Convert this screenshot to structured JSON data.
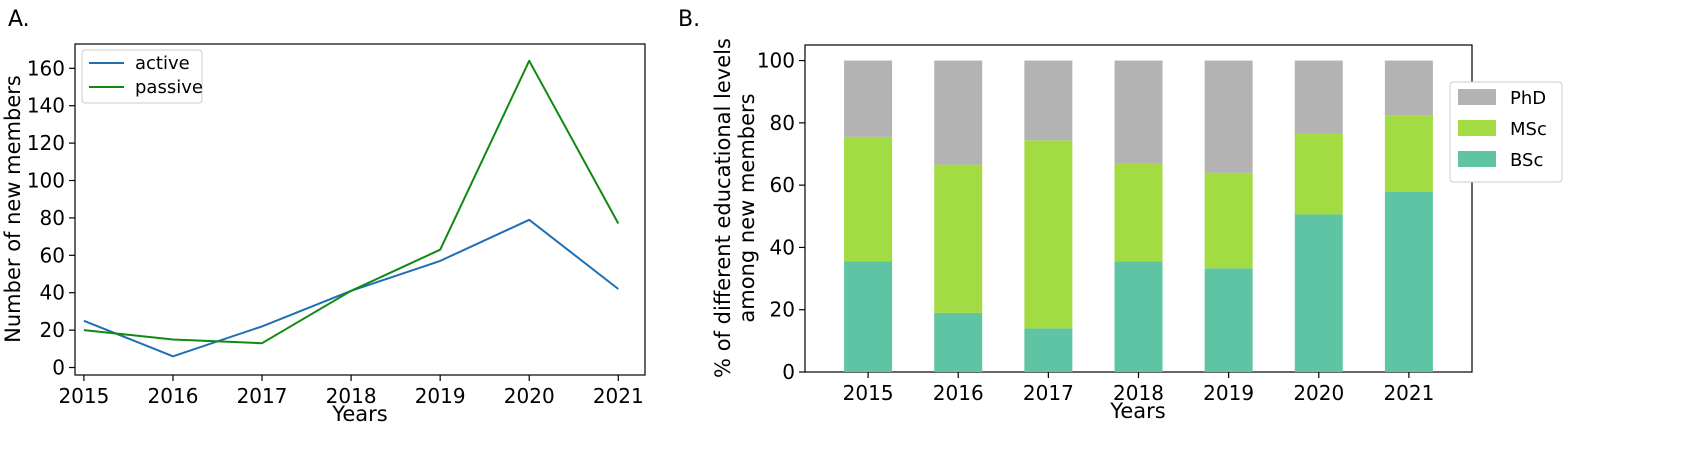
{
  "chart_data": [
    {
      "panel_label": "A.",
      "type": "line",
      "x": [
        2015,
        2016,
        2017,
        2018,
        2019,
        2020,
        2021
      ],
      "xlabel": "Years",
      "ylabel": "Number of new members",
      "ylim": [
        0,
        170
      ],
      "xticks": [
        "2015",
        "2016",
        "2017",
        "2018",
        "2019",
        "2020",
        "2021"
      ],
      "yticks": [
        "0",
        "20",
        "40",
        "60",
        "80",
        "100",
        "120",
        "140",
        "160"
      ],
      "grid": false,
      "legend_position": "top-left",
      "series": [
        {
          "name": "active",
          "color": "#1f6fb4",
          "values": [
            25,
            6,
            22,
            41,
            57,
            79,
            42
          ]
        },
        {
          "name": "passive",
          "color": "#118811",
          "values": [
            20,
            15,
            13,
            41,
            63,
            164,
            77
          ]
        }
      ]
    },
    {
      "panel_label": "B.",
      "type": "bar",
      "stacked": true,
      "categories": [
        "2015",
        "2016",
        "2017",
        "2018",
        "2019",
        "2020",
        "2021"
      ],
      "xlabel": "Years",
      "ylabel_lines": [
        "% of different educational levels",
        "among new members"
      ],
      "ylim": [
        0,
        105
      ],
      "yticks": [
        "0",
        "20",
        "40",
        "60",
        "80",
        "100"
      ],
      "grid": false,
      "legend_position": "right",
      "series": [
        {
          "name": "BSc",
          "color": "#5ec4a3",
          "values": [
            35.5,
            19,
            14,
            35.5,
            33.3,
            50.6,
            57.8
          ]
        },
        {
          "name": "MSc",
          "color": "#a3db42",
          "values": [
            40,
            47.6,
            60.4,
            31.6,
            30.7,
            26,
            24.6
          ]
        },
        {
          "name": "PhD",
          "color": "#b3b3b3",
          "values": [
            24.5,
            33.4,
            25.6,
            32.9,
            36,
            23.4,
            17.6
          ]
        }
      ],
      "legend_order": [
        "PhD",
        "MSc",
        "BSc"
      ]
    }
  ]
}
